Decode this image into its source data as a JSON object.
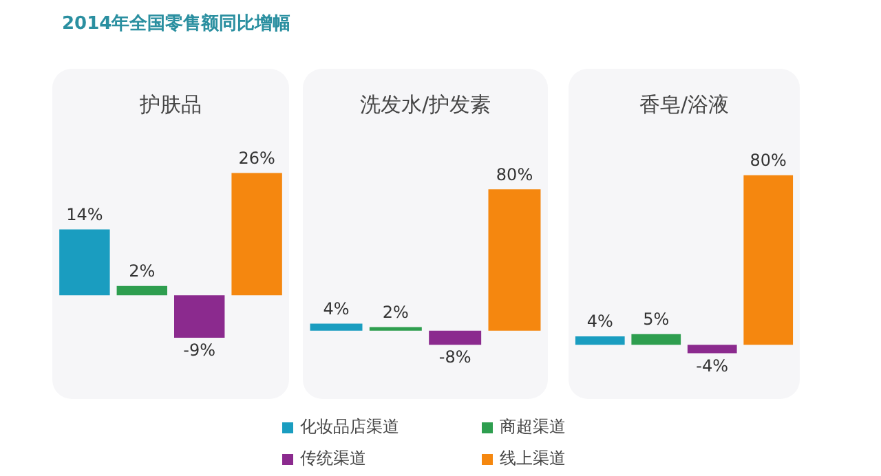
{
  "chart_data": [
    {
      "type": "bar",
      "title": "护肤品",
      "annotations": [
        "2014年全国零售额同比增幅"
      ],
      "categories": [
        null
      ],
      "legend": "bottom",
      "series": [
        {
          "name": "化妆品店渠道",
          "color": "#1a9dc0",
          "values": [
            14
          ],
          "value_labels": [
            "14%"
          ]
        },
        {
          "name": "商超渠道",
          "color": "#2e9e4f",
          "values": [
            2
          ],
          "value_labels": [
            "2%"
          ]
        },
        {
          "name": "传统渠道",
          "color": "#8b2a8e",
          "values": [
            -9
          ],
          "value_labels": [
            "-9%"
          ]
        },
        {
          "name": "线上渠道",
          "color": "#f5870f",
          "values": [
            26
          ],
          "value_labels": [
            "26%"
          ]
        }
      ]
    },
    {
      "type": "bar",
      "title": "洗发水/护发素",
      "categories": [
        null
      ],
      "series": [
        {
          "color": "#1a9dc0",
          "values": [
            4
          ],
          "value_labels": [
            "4%"
          ]
        },
        {
          "color": "#2e9e4f",
          "values": [
            2
          ],
          "value_labels": [
            "2%"
          ]
        },
        {
          "color": "#8b2a8e",
          "values": [
            -8
          ],
          "value_labels": [
            "-8%"
          ]
        },
        {
          "color": "#f5870f",
          "values": [
            80
          ],
          "value_labels": [
            "80%"
          ]
        }
      ]
    },
    {
      "type": "bar",
      "title": "香皂/浴液",
      "categories": [
        null
      ],
      "series": [
        {
          "color": "#1a9dc0",
          "values": [
            4
          ],
          "value_labels": [
            "4%"
          ]
        },
        {
          "color": "#2e9e4f",
          "values": [
            5
          ],
          "value_labels": [
            "5%"
          ]
        },
        {
          "color": "#8b2a8e",
          "values": [
            -4
          ],
          "value_labels": [
            "-4%"
          ]
        },
        {
          "color": "#f5870f",
          "values": [
            80
          ],
          "value_labels": [
            "80%"
          ]
        }
      ]
    }
  ]
}
